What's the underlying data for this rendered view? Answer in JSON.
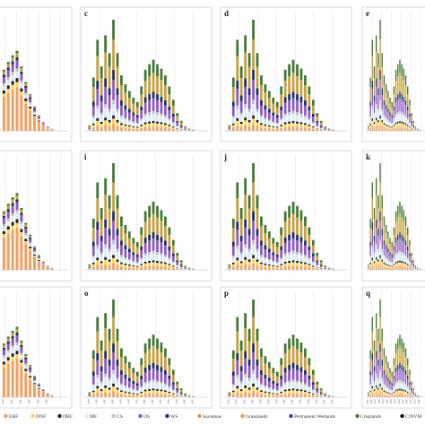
{
  "colors": {
    "axis": "#bdbdbd",
    "grid": "#e3e3e3"
  },
  "chart_data": {
    "type": "bar",
    "stacked": true,
    "panels": [
      {
        "label": "",
        "row": 0,
        "col": 0,
        "profile": "A"
      },
      {
        "label": "c",
        "row": 0,
        "col": 1,
        "profile": "B"
      },
      {
        "label": "d",
        "row": 0,
        "col": 2,
        "profile": "B"
      },
      {
        "label": "e",
        "row": 0,
        "col": 3,
        "profile": "B"
      },
      {
        "label": "",
        "row": 1,
        "col": 0,
        "profile": "A"
      },
      {
        "label": "i",
        "row": 1,
        "col": 1,
        "profile": "B"
      },
      {
        "label": "j",
        "row": 1,
        "col": 2,
        "profile": "B"
      },
      {
        "label": "k",
        "row": 1,
        "col": 3,
        "profile": "B"
      },
      {
        "label": "",
        "row": 2,
        "col": 0,
        "profile": "A"
      },
      {
        "label": "o",
        "row": 2,
        "col": 1,
        "profile": "B"
      },
      {
        "label": "p",
        "row": 2,
        "col": 2,
        "profile": "B"
      },
      {
        "label": "q",
        "row": 2,
        "col": 3,
        "profile": "B"
      }
    ],
    "series_colors": [
      "#f0a062",
      "#ffd24a",
      "#222222",
      "#d9ecf5",
      "#bfc3c8",
      "#8f59c2",
      "#1c2f66",
      "#c8a13a",
      "#3f7a30"
    ],
    "profiles": {
      "A": [
        0.55,
        0.62,
        0.68,
        0.72,
        0.58,
        0.44,
        0.33,
        0.22,
        0.14,
        0.08,
        0.04,
        0.02
      ],
      "B": [
        0.05,
        0.48,
        0.82,
        0.58,
        0.86,
        0.7,
        1.0,
        0.7,
        0.5,
        0.42,
        0.36,
        0.3,
        0.26,
        0.4,
        0.55,
        0.6,
        0.64,
        0.6,
        0.56,
        0.5,
        0.4,
        0.28,
        0.16,
        0.09,
        0.04,
        0.02,
        0.01
      ]
    },
    "mix": {
      "A": [
        0.55,
        0.06,
        0.05,
        0.08,
        0.04,
        0.1,
        0.04,
        0.05,
        0.03
      ],
      "B": [
        0.06,
        0.05,
        0.03,
        0.1,
        0.04,
        0.18,
        0.09,
        0.27,
        0.18
      ]
    },
    "legend": [
      {
        "name": "EBF",
        "color": "#f0a062"
      },
      {
        "name": "DNF",
        "color": "#ffd24a"
      },
      {
        "name": "DBF",
        "color": "#222222"
      },
      {
        "name": "MF",
        "color": "#d9ecf5"
      },
      {
        "name": "CS",
        "color": "#bfc3c8"
      },
      {
        "name": "OS",
        "color": "#8f59c2"
      },
      {
        "name": "WS",
        "color": "#1c2f66"
      },
      {
        "name": "Savannas",
        "color": "#c8a13a"
      },
      {
        "name": "Grasslands",
        "color": "#e0a23a"
      },
      {
        "name": "Permanent Wetlands",
        "color": "#2e4a8a"
      },
      {
        "name": "Croplands",
        "color": "#3f7a30"
      },
      {
        "name": "C/NVM",
        "color": "#111111"
      }
    ],
    "category_tick_text": "0°0′"
  }
}
